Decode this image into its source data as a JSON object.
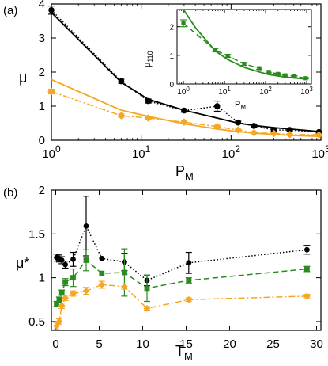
{
  "colors": {
    "black": "#000000",
    "green": "#2a8a1f",
    "orange": "#f5a623"
  },
  "chart_data": [
    {
      "panel": "(a)",
      "type": "line",
      "xscale": "log",
      "xlabel": "P",
      "xlabel_sub": "M",
      "ylabel": "μ",
      "xlim": [
        1,
        1000
      ],
      "ylim": [
        0,
        4
      ],
      "xticks": [
        {
          "v": 1,
          "b": "10",
          "e": "0"
        },
        {
          "v": 10,
          "b": "10",
          "e": "1"
        },
        {
          "v": 100,
          "b": "10",
          "e": "2"
        },
        {
          "v": 1000,
          "b": "10",
          "e": "3"
        }
      ],
      "yticks": [
        {
          "v": 0,
          "t": "0"
        },
        {
          "v": 1,
          "t": "1"
        },
        {
          "v": 2,
          "t": "2"
        },
        {
          "v": 3,
          "t": "3"
        },
        {
          "v": 4,
          "t": "4"
        }
      ],
      "series": [
        {
          "color": "black",
          "style": "solid",
          "x": [
            1,
            6,
            12,
            30,
            70,
            120,
            200,
            300,
            500,
            1000
          ],
          "y": [
            3.75,
            1.7,
            1.2,
            0.88,
            0.65,
            0.5,
            0.42,
            0.37,
            0.32,
            0.25
          ]
        },
        {
          "color": "black",
          "style": "dotted",
          "markers": "circle",
          "x": [
            1,
            6,
            12,
            30,
            70,
            120,
            180,
            300,
            450,
            950
          ],
          "y": [
            3.82,
            1.73,
            1.15,
            0.87,
            1.0,
            0.52,
            0.42,
            0.3,
            0.3,
            0.24
          ],
          "err": [
            0.12,
            0.06,
            0.06,
            0.05,
            0.15,
            0.04,
            0.03,
            0.03,
            0.03,
            0.03
          ]
        },
        {
          "color": "orange",
          "style": "solid",
          "x": [
            1,
            6,
            12,
            30,
            70,
            120,
            200,
            300,
            500,
            1000
          ],
          "y": [
            1.78,
            0.88,
            0.7,
            0.48,
            0.33,
            0.25,
            0.2,
            0.17,
            0.14,
            0.11
          ]
        },
        {
          "color": "orange",
          "style": "dashdot",
          "markers": "diamond",
          "x": [
            1,
            6,
            12,
            30,
            70,
            120,
            180,
            300,
            450,
            950
          ],
          "y": [
            1.43,
            0.72,
            0.65,
            0.53,
            0.4,
            0.3,
            0.22,
            0.2,
            0.17,
            0.16
          ],
          "err": [
            0.07,
            0.05,
            0.04,
            0.04,
            0.04,
            0.03,
            0.03,
            0.02,
            0.02,
            0.02
          ]
        }
      ],
      "inset": {
        "xscale": "log",
        "xlabel": "P",
        "xlabel_sub": "M",
        "ylabel": "μ",
        "ylabel_sub": "110",
        "xlim": [
          0.7,
          1300
        ],
        "ylim": [
          0,
          2.6
        ],
        "xticks": [
          {
            "v": 1,
            "b": "10",
            "e": "0"
          },
          {
            "v": 10,
            "b": "10",
            "e": "1"
          },
          {
            "v": 100,
            "b": "10",
            "e": "2"
          },
          {
            "v": 1000,
            "b": "10",
            "e": "3"
          }
        ],
        "yticks": [
          {
            "v": 0,
            "t": "0"
          },
          {
            "v": 1,
            "t": "1"
          },
          {
            "v": 2,
            "t": "2"
          }
        ],
        "series": [
          {
            "color": "green",
            "style": "solid",
            "x": [
              1,
              2,
              6,
              12,
              30,
              70,
              120,
              300,
              1000
            ],
            "y": [
              2.6,
              1.95,
              1.15,
              0.85,
              0.58,
              0.42,
              0.33,
              0.24,
              0.17
            ]
          },
          {
            "color": "green",
            "style": "dashed",
            "markers": "square",
            "x": [
              1,
              6,
              12,
              30,
              70,
              120,
              200,
              300,
              500,
              950
            ],
            "y": [
              2.12,
              1.18,
              0.98,
              0.7,
              0.55,
              0.42,
              0.35,
              0.3,
              0.27,
              0.2
            ],
            "err": [
              0.12,
              0.06,
              0.05,
              0.05,
              0.04,
              0.03,
              0.03,
              0.03,
              0.02,
              0.02
            ]
          }
        ]
      }
    },
    {
      "panel": "(b)",
      "type": "line",
      "xlabel": "T",
      "xlabel_sub": "M",
      "ylabel": "μ*",
      "xlim": [
        -0.5,
        30.5
      ],
      "ylim": [
        0.4,
        2.0
      ],
      "xticks": [
        {
          "v": 0,
          "t": "0"
        },
        {
          "v": 5,
          "t": "5"
        },
        {
          "v": 10,
          "t": "10"
        },
        {
          "v": 15,
          "t": "15"
        },
        {
          "v": 20,
          "t": "20"
        },
        {
          "v": 25,
          "t": "25"
        },
        {
          "v": 30,
          "t": "30"
        }
      ],
      "yticks": [
        {
          "v": 0.5,
          "t": "0.5"
        },
        {
          "v": 1.0,
          "t": "1"
        },
        {
          "v": 1.5,
          "t": "1.5"
        },
        {
          "v": 2.0,
          "t": "2"
        }
      ],
      "series": [
        {
          "color": "black",
          "style": "dotted",
          "markers": "circle",
          "x": [
            0.1,
            0.4,
            0.7,
            1.1,
            2.0,
            3.5,
            5.3,
            7.9,
            10.5,
            15.3,
            28.9
          ],
          "y": [
            1.23,
            1.22,
            1.2,
            1.15,
            1.21,
            1.59,
            1.22,
            1.18,
            0.97,
            1.17,
            1.32
          ],
          "err": [
            0.04,
            0.04,
            0.04,
            0.04,
            0.08,
            0.34,
            0.0,
            0.1,
            0.06,
            0.12,
            0.05
          ]
        },
        {
          "color": "green",
          "style": "dashed",
          "markers": "square",
          "x": [
            0.1,
            0.4,
            0.7,
            1.1,
            2.0,
            3.5,
            5.3,
            7.9,
            10.5,
            15.3,
            28.9
          ],
          "y": [
            0.7,
            0.75,
            0.83,
            0.95,
            1.0,
            1.2,
            1.05,
            1.06,
            0.88,
            0.97,
            1.1
          ],
          "err": [
            0.03,
            0.03,
            0.03,
            0.04,
            0.1,
            0.12,
            0.0,
            0.27,
            0.15,
            0.03,
            0.03
          ]
        },
        {
          "color": "orange",
          "style": "dashdot",
          "markers": "diamond",
          "x": [
            0.1,
            0.4,
            0.7,
            1.1,
            2.0,
            3.5,
            5.3,
            7.9,
            10.5,
            15.3,
            28.9
          ],
          "y": [
            0.45,
            0.5,
            0.68,
            0.77,
            0.82,
            0.85,
            0.92,
            0.9,
            0.65,
            0.75,
            0.79
          ],
          "err": [
            0.04,
            0.03,
            0.03,
            0.03,
            0.03,
            0.04,
            0.04,
            0.03,
            0.02,
            0.02,
            0.02
          ]
        }
      ]
    }
  ]
}
